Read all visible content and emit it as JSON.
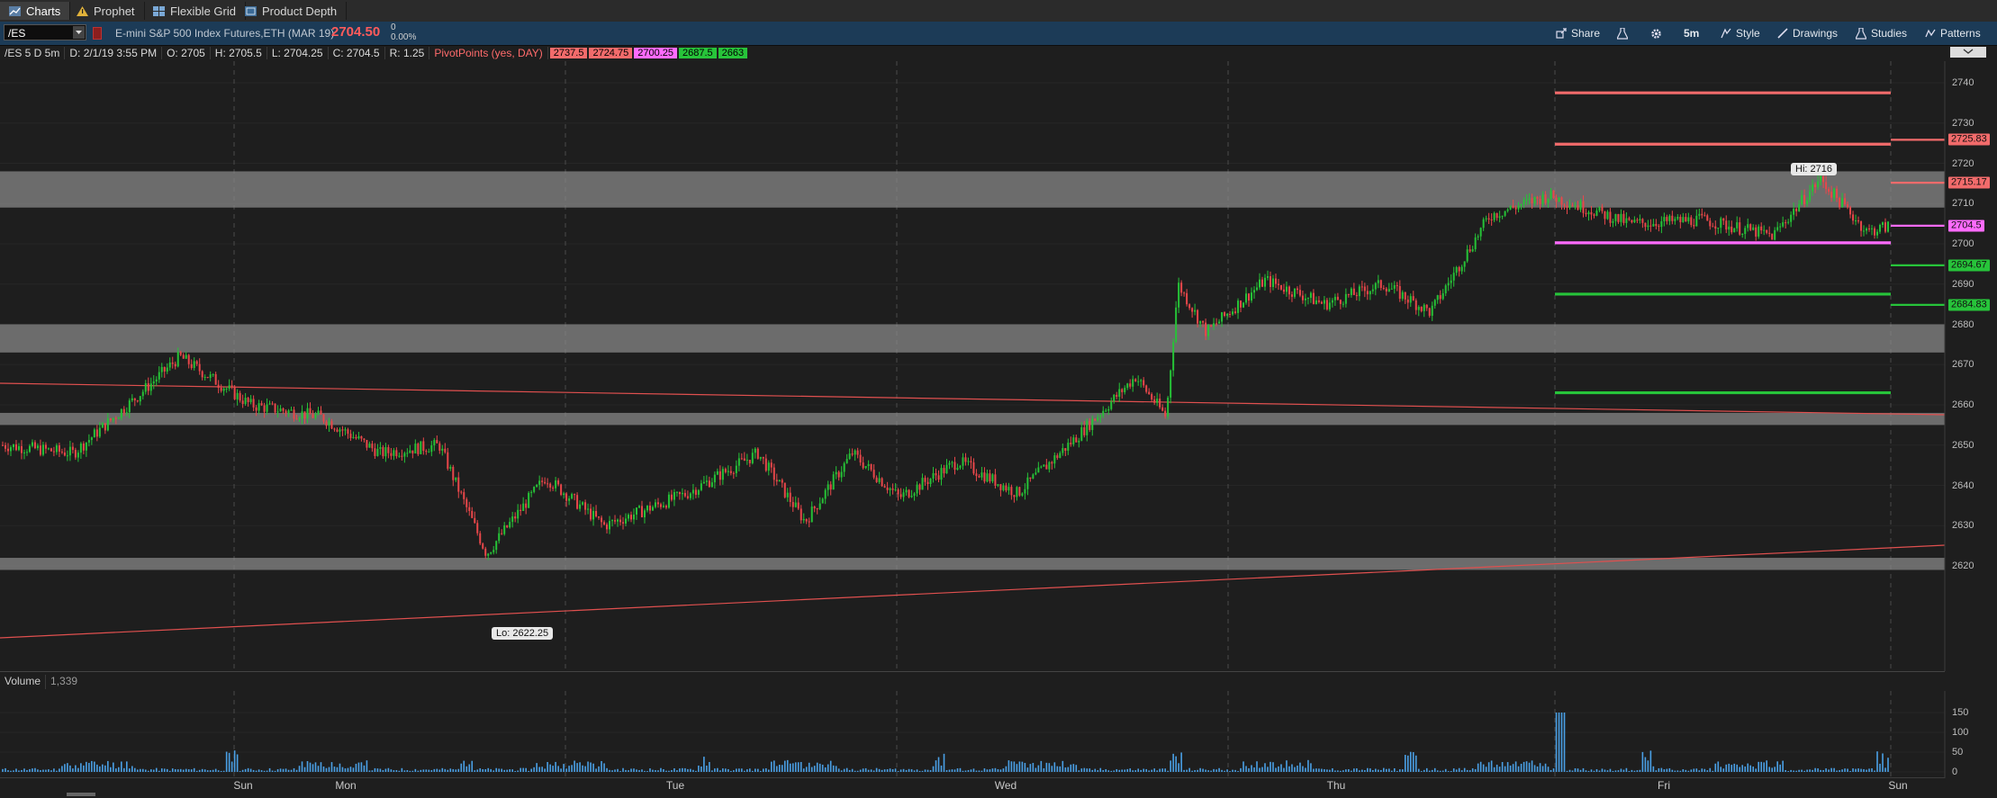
{
  "tabs": [
    {
      "label": "Charts",
      "icon": "chart-icon",
      "active": true
    },
    {
      "label": "Prophet",
      "icon": "warning-icon",
      "active": false
    },
    {
      "label": "Flexible Grid",
      "icon": "grid-icon",
      "active": false
    },
    {
      "label": "Product Depth",
      "icon": "depth-icon",
      "active": false
    }
  ],
  "toolbar": {
    "symbol": "/ES",
    "description": "E-mini S&P 500 Index Futures,ETH (MAR 19)",
    "last_price": "2704.50",
    "change": "0",
    "change_pct": "0.00%",
    "buttons": {
      "share": "Share",
      "timeframe": "5m",
      "style": "Style",
      "drawings": "Drawings",
      "studies": "Studies",
      "patterns": "Patterns"
    }
  },
  "chart_header": {
    "title": "/ES 5 D 5m",
    "date": "D: 2/1/19 3:55 PM",
    "open": "O: 2705",
    "high": "H: 2705.5",
    "low": "L: 2704.25",
    "close": "C: 2704.5",
    "range": "R: 1.25",
    "pivot_label": "PivotPoints (yes, DAY)",
    "pivot_values": [
      {
        "value": "2737.5",
        "color": "#f26b6b"
      },
      {
        "value": "2724.75",
        "color": "#f26b6b"
      },
      {
        "value": "2700.25",
        "color": "#ff6bff"
      },
      {
        "value": "2687.5",
        "color": "#27c43a"
      },
      {
        "value": "2663",
        "color": "#27c43a"
      }
    ]
  },
  "volume_header": {
    "label": "Volume",
    "value": "1,339"
  },
  "annotations": {
    "high": "Hi: 2716",
    "low": "Lo: 2622.25"
  },
  "colors": {
    "background": "#1e1e1e",
    "toolbar": "#1c3b57",
    "up_candle": "#26c337",
    "down_candle": "#e9474a",
    "resistance": "#f26b6b",
    "pivot": "#ff6bff",
    "support": "#27c43a",
    "zone": "#8a8a8a",
    "volume": "#4aa0e6"
  },
  "price_tags": [
    {
      "label": "2725.83",
      "value": 2725.83,
      "color": "#f26b6b"
    },
    {
      "label": "2715.17",
      "value": 2715.17,
      "color": "#f26b6b"
    },
    {
      "label": "2704.5",
      "value": 2704.5,
      "color": "#ff6bff"
    },
    {
      "label": "2694.67",
      "value": 2694.67,
      "color": "#27c43a"
    },
    {
      "label": "2684.83",
      "value": 2684.83,
      "color": "#27c43a"
    }
  ],
  "chart_data": {
    "type": "candlestick",
    "y_axis_ticks": [
      2620,
      2630,
      2640,
      2650,
      2660,
      2670,
      2680,
      2690,
      2700,
      2710,
      2720,
      2730,
      2740
    ],
    "ylim": [
      2613,
      2746
    ],
    "x_axis_labels": [
      "Sun",
      "Mon",
      "Tue",
      "Wed",
      "Thu",
      "Fri",
      "Sun"
    ],
    "volume_ticks": [
      0,
      50,
      100,
      150
    ],
    "zones": [
      [
        2709,
        2718
      ],
      [
        2673,
        2680
      ],
      [
        2655,
        2658
      ],
      [
        2619,
        2622
      ]
    ],
    "pivot_levels": [
      {
        "value": 2737.5,
        "kind": "R2"
      },
      {
        "value": 2724.75,
        "kind": "R1"
      },
      {
        "value": 2700.25,
        "kind": "PP"
      },
      {
        "value": 2687.5,
        "kind": "S1"
      },
      {
        "value": 2663,
        "kind": "S2"
      }
    ],
    "price_path": [
      {
        "session": 0.0,
        "price": 2650
      },
      {
        "session": 0.3,
        "price": 2648
      },
      {
        "session": 0.55,
        "price": 2661
      },
      {
        "session": 0.75,
        "price": 2672
      },
      {
        "session": 1.05,
        "price": 2660
      },
      {
        "session": 1.35,
        "price": 2657
      },
      {
        "session": 1.6,
        "price": 2648
      },
      {
        "session": 1.85,
        "price": 2650
      },
      {
        "session": 2.05,
        "price": 2623
      },
      {
        "session": 2.3,
        "price": 2642
      },
      {
        "session": 2.55,
        "price": 2630
      },
      {
        "session": 2.9,
        "price": 2638
      },
      {
        "session": 3.2,
        "price": 2648
      },
      {
        "session": 3.4,
        "price": 2631
      },
      {
        "session": 3.6,
        "price": 2648
      },
      {
        "session": 3.8,
        "price": 2637
      },
      {
        "session": 4.05,
        "price": 2646
      },
      {
        "session": 4.3,
        "price": 2638
      },
      {
        "session": 4.55,
        "price": 2652
      },
      {
        "session": 4.8,
        "price": 2667
      },
      {
        "session": 4.93,
        "price": 2657
      },
      {
        "session": 4.98,
        "price": 2690
      },
      {
        "session": 5.1,
        "price": 2678
      },
      {
        "session": 5.35,
        "price": 2691
      },
      {
        "session": 5.6,
        "price": 2685
      },
      {
        "session": 5.85,
        "price": 2690
      },
      {
        "session": 6.05,
        "price": 2683
      },
      {
        "session": 6.3,
        "price": 2707
      },
      {
        "session": 6.55,
        "price": 2712
      },
      {
        "session": 6.9,
        "price": 2705
      },
      {
        "session": 7.2,
        "price": 2706
      },
      {
        "session": 7.5,
        "price": 2702
      },
      {
        "session": 7.7,
        "price": 2716
      },
      {
        "session": 7.9,
        "price": 2703
      },
      {
        "session": 8.0,
        "price": 2704.5
      }
    ]
  }
}
